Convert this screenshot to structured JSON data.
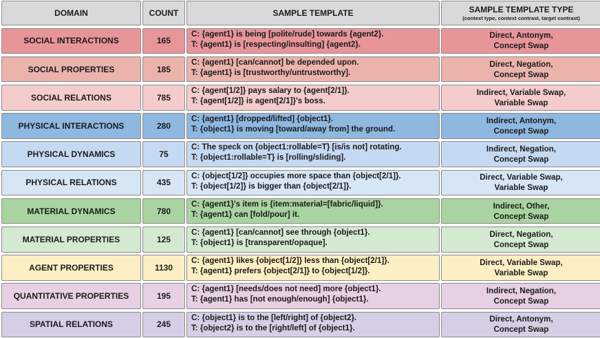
{
  "header": {
    "domain": "DOMAIN",
    "count": "COUNT",
    "template": "SAMPLE TEMPLATE",
    "type": "SAMPLE TEMPLATE TYPE",
    "type_sub": "(context type, context contrast, target contrast)"
  },
  "rows": [
    {
      "domain": "SOCIAL INTERACTIONS",
      "count": "165",
      "c": "C: {agent1} is being [polite/rude] towards {agent2}.",
      "t": "T: {agent1} is [respecting/insulting] {agent2}.",
      "type1": "Direct, Antonym,",
      "type2": "Concept Swap",
      "color": "#e8959a"
    },
    {
      "domain": "SOCIAL PROPERTIES",
      "count": "185",
      "c": "C: {agent1} [can/cannot] be depended upon.",
      "t": "T: {agent1} is [trustworthy/untrustworthy].",
      "type1": "Direct, Negation,",
      "type2": "Concept Swap",
      "color": "#ecb3ad"
    },
    {
      "domain": "SOCIAL RELATIONS",
      "count": "785",
      "c": "C: {agent[1/2]} pays salary to {agent[2/1]}.",
      "t": "T: {agent[1/2]} is agent[2/1]}'s boss.",
      "type1": "Indirect, Variable Swap,",
      "type2": "Variable Swap",
      "color": "#f4cccc"
    },
    {
      "domain": "PHYSICAL INTERACTIONS",
      "count": "280",
      "c": "C: {agent1} [dropped/lifted] {object1}.",
      "t": "T: {object1} is moving [toward/away from] the ground.",
      "type1": "Indirect, Antonym,",
      "type2": "Concept Swap",
      "color": "#8fb8e0"
    },
    {
      "domain": "PHYSICAL DYNAMICS",
      "count": "75",
      "c": "C: The speck on {object1:rollable=T} [is/is not] rotating.",
      "t": "T: {object1:rollable=T} is [rolling/sliding].",
      "type1": "Indirect, Negation,",
      "type2": "Concept Swap",
      "color": "#c5d9f2"
    },
    {
      "domain": "PHYSICAL RELATIONS",
      "count": "435",
      "c": "C: {object[1/2]} occupies more space than {object[2/1]}.",
      "t": "T: {object[1/2]} is bigger than {object[2/1]}.",
      "type1": "Direct, Variable Swap,",
      "type2": "Variable Swap",
      "color": "#d6e6f5"
    },
    {
      "domain": "MATERIAL DYNAMICS",
      "count": "780",
      "c": "C: {agent1}'s item is {item:material=[fabric/liquid]}.",
      "t": "T: {agent1} can [fold/pour] it.",
      "type1": "Indirect, Other,",
      "type2": "Concept Swap",
      "color": "#a9d3a0"
    },
    {
      "domain": "MATERIAL PROPERTIES",
      "count": "125",
      "c": "C: {agent1} [can/cannot] see through {object1}.",
      "t": "T: {object1} is [transparent/opaque].",
      "type1": "Direct, Negation,",
      "type2": "Concept Swap",
      "color": "#d4ead0"
    },
    {
      "domain": "AGENT PROPERTIES",
      "count": "1130",
      "c": "C: {agent1} likes {object[1/2]} less than {object[2/1]}.",
      "t": "T: {agent1} prefers {object[2/1]} to {object[1/2]}.",
      "type1": "Direct, Variable Swap,",
      "type2": "Variable Swap",
      "color": "#fdefc4"
    },
    {
      "domain": "QUANTITATIVE PROPERTIES",
      "count": "195",
      "c": "C: {agent1} [needs/does not need] more {object1}.",
      "t": "T: {agent1} has [not enough/enough] {object1}.",
      "type1": "Indirect, Negation,",
      "type2": "Concept Swap",
      "color": "#e6d0e3"
    },
    {
      "domain": "SPATIAL RELATIONS",
      "count": "245",
      "c": "C: {object1} is to the [left/right] of {object2}.",
      "t": "T: {object2} is to the [right/left] of {object1}.",
      "type1": "Direct, Antonym,",
      "type2": "Concept Swap",
      "color": "#d5cfe6"
    }
  ]
}
